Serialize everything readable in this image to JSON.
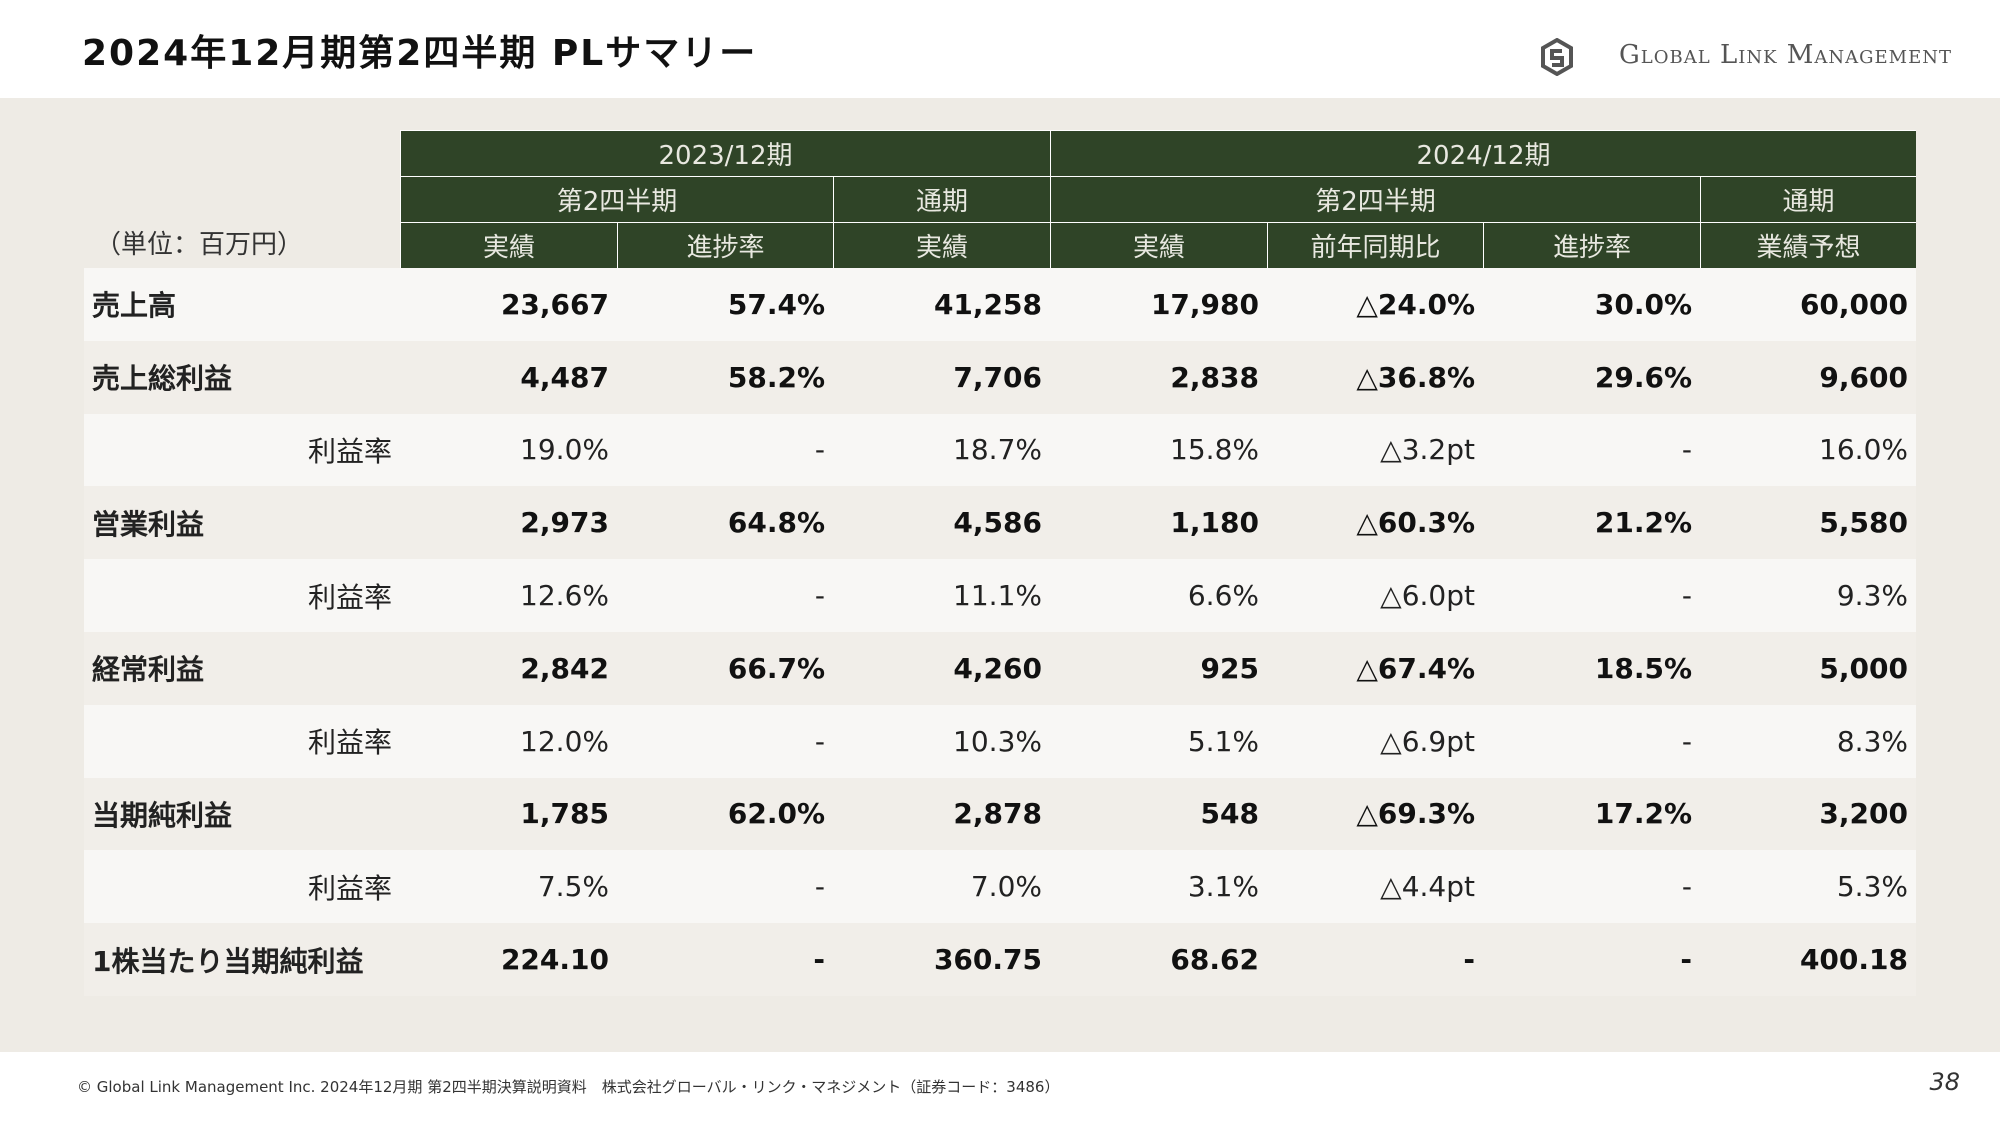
{
  "header": {
    "title": "2024年12月期第2四半期 PLサマリー",
    "logo": "Global Link Management"
  },
  "table": {
    "unit": "（単位：百万円）",
    "period_headers": [
      "2023/12期",
      "2024/12期"
    ],
    "sub_headers": [
      "第2四半期",
      "通期",
      "第2四半期",
      "通期"
    ],
    "column_headers": [
      "実績",
      "進捗率",
      "実績",
      "実績",
      "前年同期比",
      "進捗率",
      "業績予想"
    ],
    "rows": [
      {
        "label": "売上高",
        "emphasis": true,
        "values": [
          "23,667",
          "57.4%",
          "41,258",
          "17,980",
          "△24.0%",
          "30.0%",
          "60,000"
        ]
      },
      {
        "label": "売上総利益",
        "emphasis": true,
        "values": [
          "4,487",
          "58.2%",
          "7,706",
          "2,838",
          "△36.8%",
          "29.6%",
          "9,600"
        ]
      },
      {
        "label": "利益率",
        "emphasis": false,
        "values": [
          "19.0%",
          "-",
          "18.7%",
          "15.8%",
          "△3.2pt",
          "-",
          "16.0%"
        ]
      },
      {
        "label": "営業利益",
        "emphasis": true,
        "values": [
          "2,973",
          "64.8%",
          "4,586",
          "1,180",
          "△60.3%",
          "21.2%",
          "5,580"
        ]
      },
      {
        "label": "利益率",
        "emphasis": false,
        "values": [
          "12.6%",
          "-",
          "11.1%",
          "6.6%",
          "△6.0pt",
          "-",
          "9.3%"
        ]
      },
      {
        "label": "経常利益",
        "emphasis": true,
        "values": [
          "2,842",
          "66.7%",
          "4,260",
          "925",
          "△67.4%",
          "18.5%",
          "5,000"
        ]
      },
      {
        "label": "利益率",
        "emphasis": false,
        "values": [
          "12.0%",
          "-",
          "10.3%",
          "5.1%",
          "△6.9pt",
          "-",
          "8.3%"
        ]
      },
      {
        "label": "当期純利益",
        "emphasis": true,
        "values": [
          "1,785",
          "62.0%",
          "2,878",
          "548",
          "△69.3%",
          "17.2%",
          "3,200"
        ]
      },
      {
        "label": "利益率",
        "emphasis": false,
        "values": [
          "7.5%",
          "-",
          "7.0%",
          "3.1%",
          "△4.4pt",
          "-",
          "5.3%"
        ]
      },
      {
        "label": "1株当たり当期純利益",
        "emphasis": true,
        "values": [
          "224.10",
          "-",
          "360.75",
          "68.62",
          "-",
          "-",
          "400.18"
        ]
      }
    ]
  },
  "footer": {
    "text": "© Global Link Management Inc. 2024年12月期 第2四半期決算説明資料　株式会社グローバル・リンク・マネジメント（証券コード：3486）",
    "page": "38"
  }
}
